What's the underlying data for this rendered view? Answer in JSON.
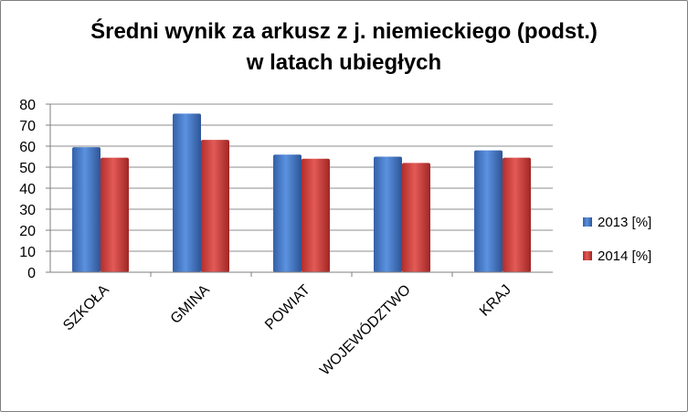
{
  "chart_data": {
    "type": "bar",
    "title": "Średni wynik za arkusz z j. niemieckiego (podst.) w latach ubiegłych",
    "title_lines": [
      "Średni wynik za arkusz z j. niemieckiego (podst.)",
      "w latach ubiegłych"
    ],
    "categories": [
      "SZKOŁA",
      "GMINA",
      "POWIAT",
      "WOJEWÓDZTWO",
      "KRAJ"
    ],
    "series": [
      {
        "name": "2013 [%]",
        "values": [
          59.5,
          75.5,
          56,
          55,
          58
        ],
        "color": "#4a7fd0"
      },
      {
        "name": "2014 [%]",
        "values": [
          54.5,
          63,
          54,
          52,
          54.5
        ],
        "color": "#d44340"
      }
    ],
    "yticks": [
      0,
      10,
      20,
      30,
      40,
      50,
      60,
      70,
      80
    ],
    "ylim": [
      0,
      80
    ],
    "xlabel": "",
    "ylabel": "",
    "grid": true,
    "legend_position": "right"
  }
}
